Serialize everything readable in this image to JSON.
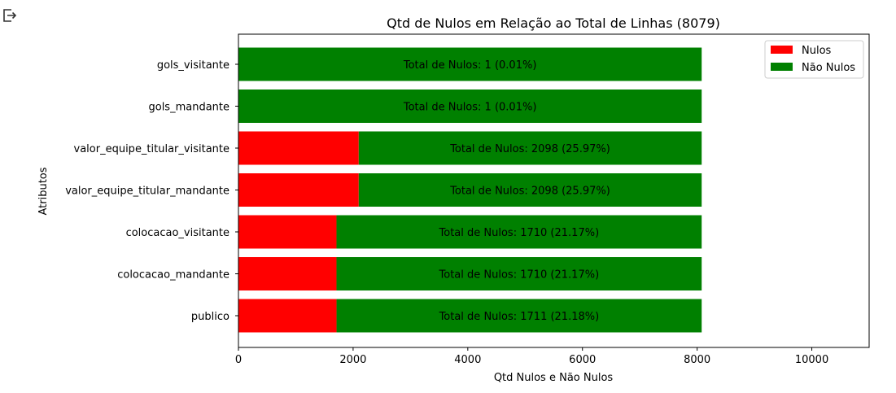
{
  "toolbar": {
    "export_icon": "export-output-icon"
  },
  "chart_data": {
    "type": "bar",
    "orientation": "horizontal",
    "stacked": true,
    "title": "Qtd de Nulos em Relação ao Total de Linhas (8079)",
    "xlabel": "Qtd Nulos e Não Nulos",
    "ylabel": "Atributos",
    "xlim": [
      0,
      11000
    ],
    "xticks": [
      0,
      2000,
      4000,
      6000,
      8000,
      10000
    ],
    "grid": false,
    "legend_position": "top-right",
    "total": 8079,
    "categories": [
      "gols_visitante",
      "gols_mandante",
      "valor_equipe_titular_visitante",
      "valor_equipe_titular_mandante",
      "colocacao_visitante",
      "colocacao_mandante",
      "publico"
    ],
    "series": [
      {
        "name": "Nulos",
        "color": "#ff0000",
        "values": [
          1,
          1,
          2098,
          2098,
          1710,
          1710,
          1711
        ]
      },
      {
        "name": "Não Nulos",
        "color": "#008000",
        "values": [
          8078,
          8078,
          5981,
          5981,
          6369,
          6369,
          6368
        ]
      }
    ],
    "bar_labels": [
      "Total de Nulos: 1 (0.01%)",
      "Total de Nulos: 1 (0.01%)",
      "Total de Nulos: 2098 (25.97%)",
      "Total de Nulos: 2098 (25.97%)",
      "Total de Nulos: 1710 (21.17%)",
      "Total de Nulos: 1710 (21.17%)",
      "Total de Nulos: 1711 (21.18%)"
    ]
  }
}
